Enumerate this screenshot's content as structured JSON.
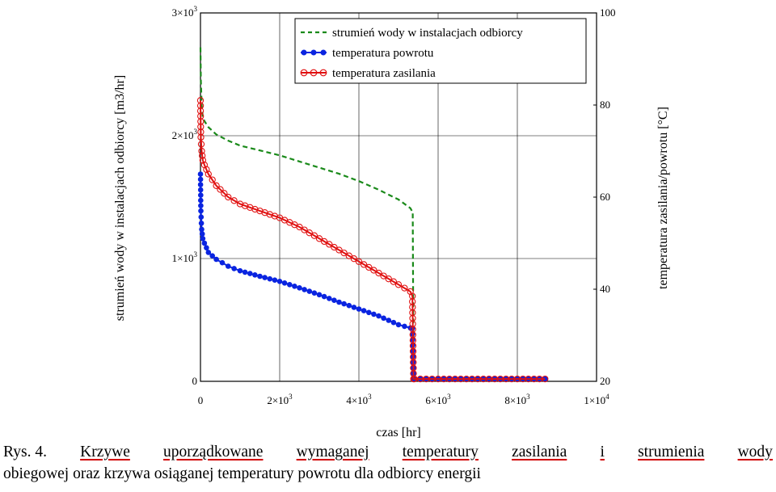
{
  "chart_data": {
    "type": "line",
    "xlabel": "czas [hr]",
    "ylabel_left": "strumień wody w instalacjach odbiorcy [m3/hr]",
    "ylabel_right": "temperatura zasilania/powrotu [°C]",
    "xlim": [
      0,
      10000
    ],
    "ylim_left": [
      0,
      3000
    ],
    "ylim_right": [
      20,
      100
    ],
    "x_ticks": [
      0,
      2000,
      4000,
      6000,
      8000,
      10000
    ],
    "x_tick_labels": [
      {
        "main": "0",
        "sup": ""
      },
      {
        "main": "2×10",
        "sup": "3"
      },
      {
        "main": "4×10",
        "sup": "3"
      },
      {
        "main": "6×10",
        "sup": "3"
      },
      {
        "main": "8×10",
        "sup": "3"
      },
      {
        "main": "1×10",
        "sup": "4"
      }
    ],
    "y_left_ticks": [
      0,
      1000,
      2000,
      3000
    ],
    "y_left_tick_labels": [
      {
        "main": "0",
        "sup": ""
      },
      {
        "main": "1×10",
        "sup": "3"
      },
      {
        "main": "2×10",
        "sup": "3"
      },
      {
        "main": "3×10",
        "sup": "3"
      }
    ],
    "y_right_ticks": [
      20,
      40,
      60,
      80,
      100
    ],
    "y_right_tick_labels": [
      "20",
      "40",
      "60",
      "80",
      "100"
    ],
    "grid": true,
    "legend_position": "top-right",
    "series": [
      {
        "name": "strumień wody w instalacjach odbiorcy",
        "axis": "left",
        "color": "#1a8a1a",
        "style": "dashed",
        "x": [
          0,
          10,
          30,
          60,
          100,
          200,
          400,
          700,
          1000,
          1500,
          2000,
          2500,
          3000,
          3500,
          4000,
          4500,
          5000,
          5300,
          5350,
          5360,
          5380,
          5400,
          6000,
          7000,
          8000,
          8700
        ],
        "values": [
          2720,
          2450,
          2250,
          2150,
          2120,
          2070,
          2010,
          1960,
          1920,
          1880,
          1840,
          1790,
          1740,
          1690,
          1630,
          1560,
          1480,
          1410,
          1380,
          1380,
          20,
          10,
          10,
          10,
          10,
          10
        ]
      },
      {
        "name": "temperatura powrotu",
        "axis": "right",
        "color": "#0a24e0",
        "style": "line-dots",
        "x": [
          0,
          10,
          30,
          60,
          100,
          200,
          400,
          700,
          1000,
          1500,
          2000,
          2500,
          3000,
          3500,
          4000,
          4500,
          5000,
          5300,
          5350,
          5380,
          5400,
          6000,
          7000,
          8000,
          8700
        ],
        "values": [
          65,
          57,
          53,
          51,
          50,
          48,
          46.5,
          45,
          44,
          42.8,
          41.7,
          40.3,
          38.8,
          37.2,
          35.7,
          34.2,
          32.3,
          31.6,
          31.5,
          20.5,
          20.5,
          20.5,
          20.5,
          20.5,
          20.5
        ]
      },
      {
        "name": "temperatura zasilania",
        "axis": "right",
        "color": "#e01010",
        "style": "line-circles",
        "x": [
          0,
          10,
          30,
          60,
          100,
          200,
          400,
          700,
          1000,
          1500,
          2000,
          2500,
          3000,
          3500,
          4000,
          4500,
          5000,
          5300,
          5350,
          5380,
          5400,
          6000,
          7000,
          8000,
          8700
        ],
        "values": [
          81,
          73,
          70,
          68,
          67,
          65,
          62.5,
          60,
          58.5,
          57,
          55.5,
          53.5,
          51,
          48.5,
          46,
          43.5,
          41,
          39.5,
          38.5,
          20.5,
          20.5,
          20.5,
          20.5,
          20.5,
          20.5
        ]
      }
    ]
  },
  "caption": {
    "label": "Rys. 4.",
    "line1_words": [
      "Krzywe",
      "uporządkowane",
      "wymaganej",
      "temperatury",
      "zasilania",
      "i",
      "strumienia",
      "wody"
    ],
    "line2": "obiegowej oraz krzywa osiąganej temperatury powrotu dla odbiorcy energii"
  }
}
